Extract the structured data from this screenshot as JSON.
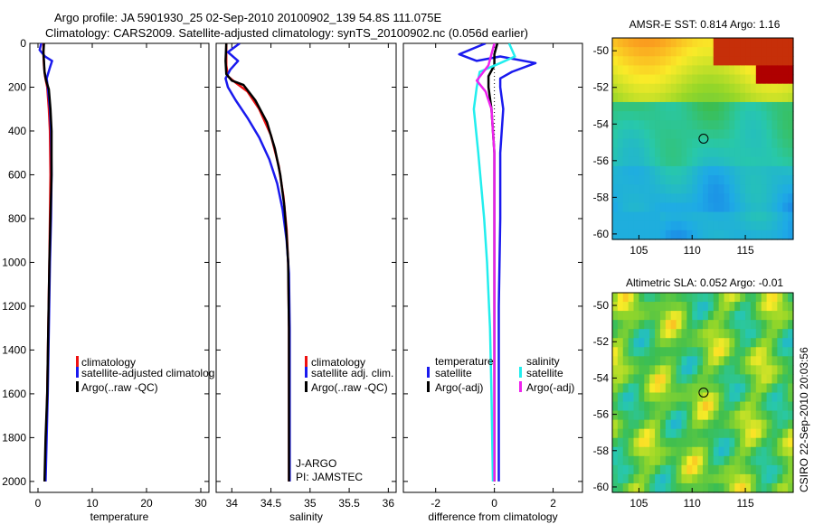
{
  "header": {
    "line1": "Argo profile: JA 5901930_25 02-Sep-2010 20100902_139 54.8S 111.075E",
    "line2": "Climatology: CARS2009. Satellite-adjusted climatology: synTS_20100902.nc (0.056d earlier)"
  },
  "footer": {
    "credit": "CSIRO 22-Sep-2010 20:03:56"
  },
  "colors": {
    "climatology": "#ee1111",
    "satellite": "#1a1aee",
    "argo": "#000000",
    "satellite_salinity": "#22eeee",
    "argo_salinity": "#ee22ee"
  },
  "chart_data": [
    {
      "id": "temperature",
      "type": "line",
      "xlabel": "temperature",
      "ylabel": "",
      "xlim": [
        -1.5,
        31.5
      ],
      "ylim": [
        2050,
        0
      ],
      "xticks": [
        0,
        10,
        20,
        30
      ],
      "yticks": [
        0,
        200,
        400,
        600,
        800,
        1000,
        1200,
        1400,
        1600,
        1800,
        2000
      ],
      "legend": [
        "climatology",
        "satellite-adjusted climatolog",
        "Argo(..raw -QC)"
      ],
      "series": [
        {
          "name": "climatology",
          "color": "#ee1111",
          "points": [
            [
              1.0,
              0
            ],
            [
              1.0,
              50
            ],
            [
              1.1,
              100
            ],
            [
              1.3,
              150
            ],
            [
              1.7,
              200
            ],
            [
              2.0,
              300
            ],
            [
              2.2,
              400
            ],
            [
              2.3,
              600
            ],
            [
              2.2,
              800
            ],
            [
              2.1,
              1000
            ],
            [
              1.9,
              1300
            ],
            [
              1.7,
              1600
            ],
            [
              1.5,
              1800
            ],
            [
              1.3,
              2000
            ]
          ]
        },
        {
          "name": "satellite-adjusted climatolog",
          "color": "#1a1aee",
          "points": [
            [
              0.6,
              0
            ],
            [
              0.3,
              30
            ],
            [
              1.3,
              60
            ],
            [
              2.6,
              80
            ],
            [
              2.2,
              110
            ],
            [
              1.6,
              160
            ],
            [
              1.8,
              200
            ],
            [
              2.2,
              300
            ],
            [
              2.4,
              400
            ],
            [
              2.5,
              600
            ],
            [
              2.4,
              800
            ],
            [
              2.2,
              1000
            ],
            [
              2.0,
              1300
            ],
            [
              1.8,
              1600
            ],
            [
              1.6,
              1800
            ],
            [
              1.4,
              2000
            ]
          ]
        },
        {
          "name": "Argo(..raw -QC)",
          "color": "#000000",
          "points": [
            [
              1.1,
              0
            ],
            [
              1.0,
              40
            ],
            [
              1.1,
              80
            ],
            [
              1.2,
              130
            ],
            [
              1.5,
              170
            ],
            [
              2.0,
              210
            ],
            [
              2.3,
              300
            ],
            [
              2.5,
              400
            ],
            [
              2.5,
              600
            ],
            [
              2.3,
              800
            ],
            [
              2.1,
              1000
            ],
            [
              1.9,
              1300
            ],
            [
              1.7,
              1600
            ],
            [
              1.4,
              1800
            ],
            [
              1.2,
              2000
            ]
          ]
        }
      ]
    },
    {
      "id": "salinity",
      "type": "line",
      "xlabel": "salinity",
      "ylabel": "",
      "xlim": [
        33.8,
        36.1
      ],
      "ylim": [
        2050,
        0
      ],
      "xticks": [
        34,
        34.5,
        35,
        35.5,
        36
      ],
      "xticklabels": [
        "34",
        "34.5",
        "35",
        "35.5",
        "36"
      ],
      "yticks": [
        0,
        200,
        400,
        600,
        800,
        1000,
        1200,
        1400,
        1600,
        1800,
        2000
      ],
      "legend": [
        "climatology",
        "satellite adj. clim.",
        "Argo(..raw -QC)"
      ],
      "annotations": [
        "J-ARGO",
        "PI: JAMSTEC"
      ],
      "series": [
        {
          "name": "climatology",
          "color": "#ee1111",
          "points": [
            [
              33.93,
              0
            ],
            [
              33.93,
              100
            ],
            [
              33.95,
              150
            ],
            [
              34.05,
              180
            ],
            [
              34.2,
              220
            ],
            [
              34.35,
              300
            ],
            [
              34.5,
              420
            ],
            [
              34.6,
              560
            ],
            [
              34.66,
              700
            ],
            [
              34.7,
              850
            ],
            [
              34.72,
              1000
            ],
            [
              34.73,
              1300
            ],
            [
              34.73,
              1600
            ],
            [
              34.73,
              1800
            ],
            [
              34.73,
              2000
            ]
          ]
        },
        {
          "name": "satellite adj. clim.",
          "color": "#1a1aee",
          "points": [
            [
              34.1,
              0
            ],
            [
              33.95,
              40
            ],
            [
              34.08,
              80
            ],
            [
              33.98,
              120
            ],
            [
              33.92,
              160
            ],
            [
              33.95,
              200
            ],
            [
              34.05,
              260
            ],
            [
              34.2,
              340
            ],
            [
              34.35,
              430
            ],
            [
              34.48,
              530
            ],
            [
              34.58,
              640
            ],
            [
              34.65,
              760
            ],
            [
              34.7,
              900
            ],
            [
              34.73,
              1050
            ],
            [
              34.74,
              1300
            ],
            [
              34.74,
              1600
            ],
            [
              34.74,
              1800
            ],
            [
              34.74,
              2000
            ]
          ]
        },
        {
          "name": "Argo(..raw -QC)",
          "color": "#000000",
          "points": [
            [
              33.93,
              0
            ],
            [
              33.92,
              80
            ],
            [
              33.93,
              140
            ],
            [
              34.0,
              170
            ],
            [
              34.15,
              190
            ],
            [
              34.3,
              260
            ],
            [
              34.45,
              360
            ],
            [
              34.55,
              480
            ],
            [
              34.62,
              600
            ],
            [
              34.67,
              740
            ],
            [
              34.7,
              880
            ],
            [
              34.72,
              1000
            ],
            [
              34.73,
              1300
            ],
            [
              34.73,
              1600
            ],
            [
              34.73,
              1800
            ],
            [
              34.73,
              2000
            ]
          ]
        }
      ]
    },
    {
      "id": "difference",
      "type": "line",
      "xlabel": "difference from climatology",
      "ylabel": "",
      "xlim": [
        -3.1,
        3.0
      ],
      "ylim": [
        2050,
        0
      ],
      "xticks": [
        -2,
        0,
        2
      ],
      "yticks": [
        0,
        200,
        400,
        600,
        800,
        1000,
        1200,
        1400,
        1600,
        1800,
        2000
      ],
      "legend_titles": [
        "temperature",
        "salinity"
      ],
      "legend": [
        "satellite",
        "Argo(-adj)",
        "satellite",
        "Argo(-adj)"
      ],
      "series": [
        {
          "name": "satellite",
          "group": "temperature",
          "color": "#1a1aee",
          "points": [
            [
              -0.3,
              0
            ],
            [
              -1.2,
              50
            ],
            [
              -0.6,
              80
            ],
            [
              0.2,
              60
            ],
            [
              1.4,
              90
            ],
            [
              0.6,
              130
            ],
            [
              0.2,
              160
            ],
            [
              0.2,
              200
            ],
            [
              0.3,
              300
            ],
            [
              0.2,
              500
            ],
            [
              0.2,
              800
            ],
            [
              0.15,
              1200
            ],
            [
              0.15,
              1600
            ],
            [
              0.15,
              2000
            ]
          ]
        },
        {
          "name": "Argo(-adj)",
          "group": "temperature",
          "color": "#000000",
          "points": [
            [
              0.1,
              0
            ],
            [
              0.0,
              50
            ],
            [
              0.0,
              100
            ],
            [
              -0.2,
              150
            ],
            [
              -0.2,
              200
            ],
            [
              -0.1,
              300
            ],
            [
              0.0,
              500
            ],
            [
              0.0,
              800
            ],
            [
              0.0,
              1200
            ],
            [
              0.0,
              1600
            ],
            [
              0.0,
              2000
            ]
          ]
        },
        {
          "name": "satellite",
          "group": "salinity",
          "color": "#22eeee",
          "points": [
            [
              0.5,
              0
            ],
            [
              0.7,
              60
            ],
            [
              0.2,
              90
            ],
            [
              -0.5,
              130
            ],
            [
              -0.6,
              200
            ],
            [
              -0.7,
              300
            ],
            [
              -0.55,
              500
            ],
            [
              -0.35,
              800
            ],
            [
              -0.25,
              1000
            ],
            [
              -0.15,
              1300
            ],
            [
              -0.1,
              1600
            ],
            [
              -0.05,
              2000
            ]
          ]
        },
        {
          "name": "Argo(-adj)",
          "group": "salinity",
          "color": "#ee22ee",
          "points": [
            [
              0.0,
              0
            ],
            [
              -0.2,
              100
            ],
            [
              -0.6,
              170
            ],
            [
              -0.3,
              220
            ],
            [
              -0.1,
              300
            ],
            [
              0.0,
              500
            ],
            [
              0.0,
              800
            ],
            [
              0.0,
              1200
            ],
            [
              0.0,
              1600
            ],
            [
              0.0,
              2000
            ]
          ]
        }
      ]
    },
    {
      "id": "sst_map",
      "type": "heatmap",
      "title": "AMSR-E SST: 0.814  Argo: 1.16",
      "xlim": [
        102.5,
        119.5
      ],
      "ylim": [
        -60.3,
        -49.3
      ],
      "xticks": [
        105,
        110,
        115
      ],
      "yticks": [
        -50,
        -52,
        -54,
        -56,
        -58,
        -60
      ],
      "marker": {
        "lon": 111.075,
        "lat": -54.8
      }
    },
    {
      "id": "sla_map",
      "type": "heatmap",
      "title": "Altimetric SLA: 0.052  Argo: -0.01",
      "xlim": [
        102.5,
        119.5
      ],
      "ylim": [
        -60.3,
        -49.3
      ],
      "xticks": [
        105,
        110,
        115
      ],
      "yticks": [
        -50,
        -52,
        -54,
        -56,
        -58,
        -60
      ],
      "marker": {
        "lon": 111.075,
        "lat": -54.8
      }
    }
  ]
}
